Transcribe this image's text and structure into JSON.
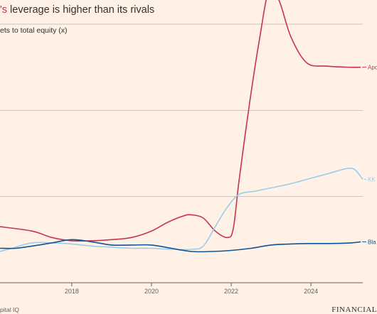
{
  "header": {
    "title_highlight": "'s",
    "title_rest": " leverage is higher than its rivals",
    "subtitle": "ets to total equity (x)"
  },
  "footer": {
    "source": "pital IQ",
    "brand": "FINANCIAL"
  },
  "chart_data": {
    "type": "line",
    "title": "'s leverage is higher than its rivals",
    "ylabel": "ets to total equity (x)",
    "xlim": [
      2016.2,
      2025.3
    ],
    "ylim": [
      0,
      12
    ],
    "x_ticks": [
      2018,
      2020,
      2022,
      2024
    ],
    "grid": true,
    "series": [
      {
        "name": "Apo",
        "color": "#c8354a",
        "points": [
          [
            2016.2,
            2.6
          ],
          [
            2017.0,
            2.4
          ],
          [
            2017.5,
            2.1
          ],
          [
            2018.0,
            1.95
          ],
          [
            2018.5,
            1.95
          ],
          [
            2019.0,
            2.0
          ],
          [
            2019.5,
            2.1
          ],
          [
            2020.0,
            2.4
          ],
          [
            2020.4,
            2.8
          ],
          [
            2020.8,
            3.1
          ],
          [
            2021.0,
            3.15
          ],
          [
            2021.3,
            3.0
          ],
          [
            2021.6,
            2.4
          ],
          [
            2021.9,
            2.1
          ],
          [
            2022.05,
            2.5
          ],
          [
            2022.2,
            4.8
          ],
          [
            2022.45,
            8.2
          ],
          [
            2022.7,
            11.2
          ],
          [
            2022.95,
            13.6
          ],
          [
            2023.2,
            13.1
          ],
          [
            2023.5,
            11.4
          ],
          [
            2023.9,
            10.2
          ],
          [
            2024.4,
            10.05
          ],
          [
            2025.0,
            10.0
          ],
          [
            2025.25,
            10.0
          ]
        ]
      },
      {
        "name": "KK",
        "color": "#9dcce8",
        "points": [
          [
            2016.2,
            1.45
          ],
          [
            2016.5,
            1.6
          ],
          [
            2017.0,
            1.85
          ],
          [
            2017.5,
            1.85
          ],
          [
            2018.0,
            1.8
          ],
          [
            2018.5,
            1.7
          ],
          [
            2019.0,
            1.65
          ],
          [
            2019.5,
            1.6
          ],
          [
            2020.0,
            1.6
          ],
          [
            2020.5,
            1.55
          ],
          [
            2021.0,
            1.55
          ],
          [
            2021.3,
            1.7
          ],
          [
            2021.6,
            2.6
          ],
          [
            2021.9,
            3.5
          ],
          [
            2022.2,
            4.1
          ],
          [
            2022.6,
            4.25
          ],
          [
            2023.0,
            4.4
          ],
          [
            2023.5,
            4.6
          ],
          [
            2024.0,
            4.85
          ],
          [
            2024.5,
            5.1
          ],
          [
            2024.9,
            5.3
          ],
          [
            2025.1,
            5.25
          ],
          [
            2025.3,
            4.8
          ]
        ]
      },
      {
        "name": "Bla",
        "color": "#0f5499",
        "points": [
          [
            2016.2,
            1.6
          ],
          [
            2016.6,
            1.6
          ],
          [
            2017.0,
            1.7
          ],
          [
            2017.5,
            1.85
          ],
          [
            2018.0,
            2.0
          ],
          [
            2018.5,
            1.9
          ],
          [
            2019.0,
            1.75
          ],
          [
            2019.5,
            1.75
          ],
          [
            2020.0,
            1.75
          ],
          [
            2020.5,
            1.6
          ],
          [
            2021.0,
            1.45
          ],
          [
            2021.5,
            1.45
          ],
          [
            2022.0,
            1.5
          ],
          [
            2022.5,
            1.6
          ],
          [
            2023.0,
            1.75
          ],
          [
            2023.5,
            1.8
          ],
          [
            2024.0,
            1.82
          ],
          [
            2024.5,
            1.82
          ],
          [
            2025.0,
            1.85
          ],
          [
            2025.25,
            1.9
          ]
        ]
      }
    ]
  }
}
